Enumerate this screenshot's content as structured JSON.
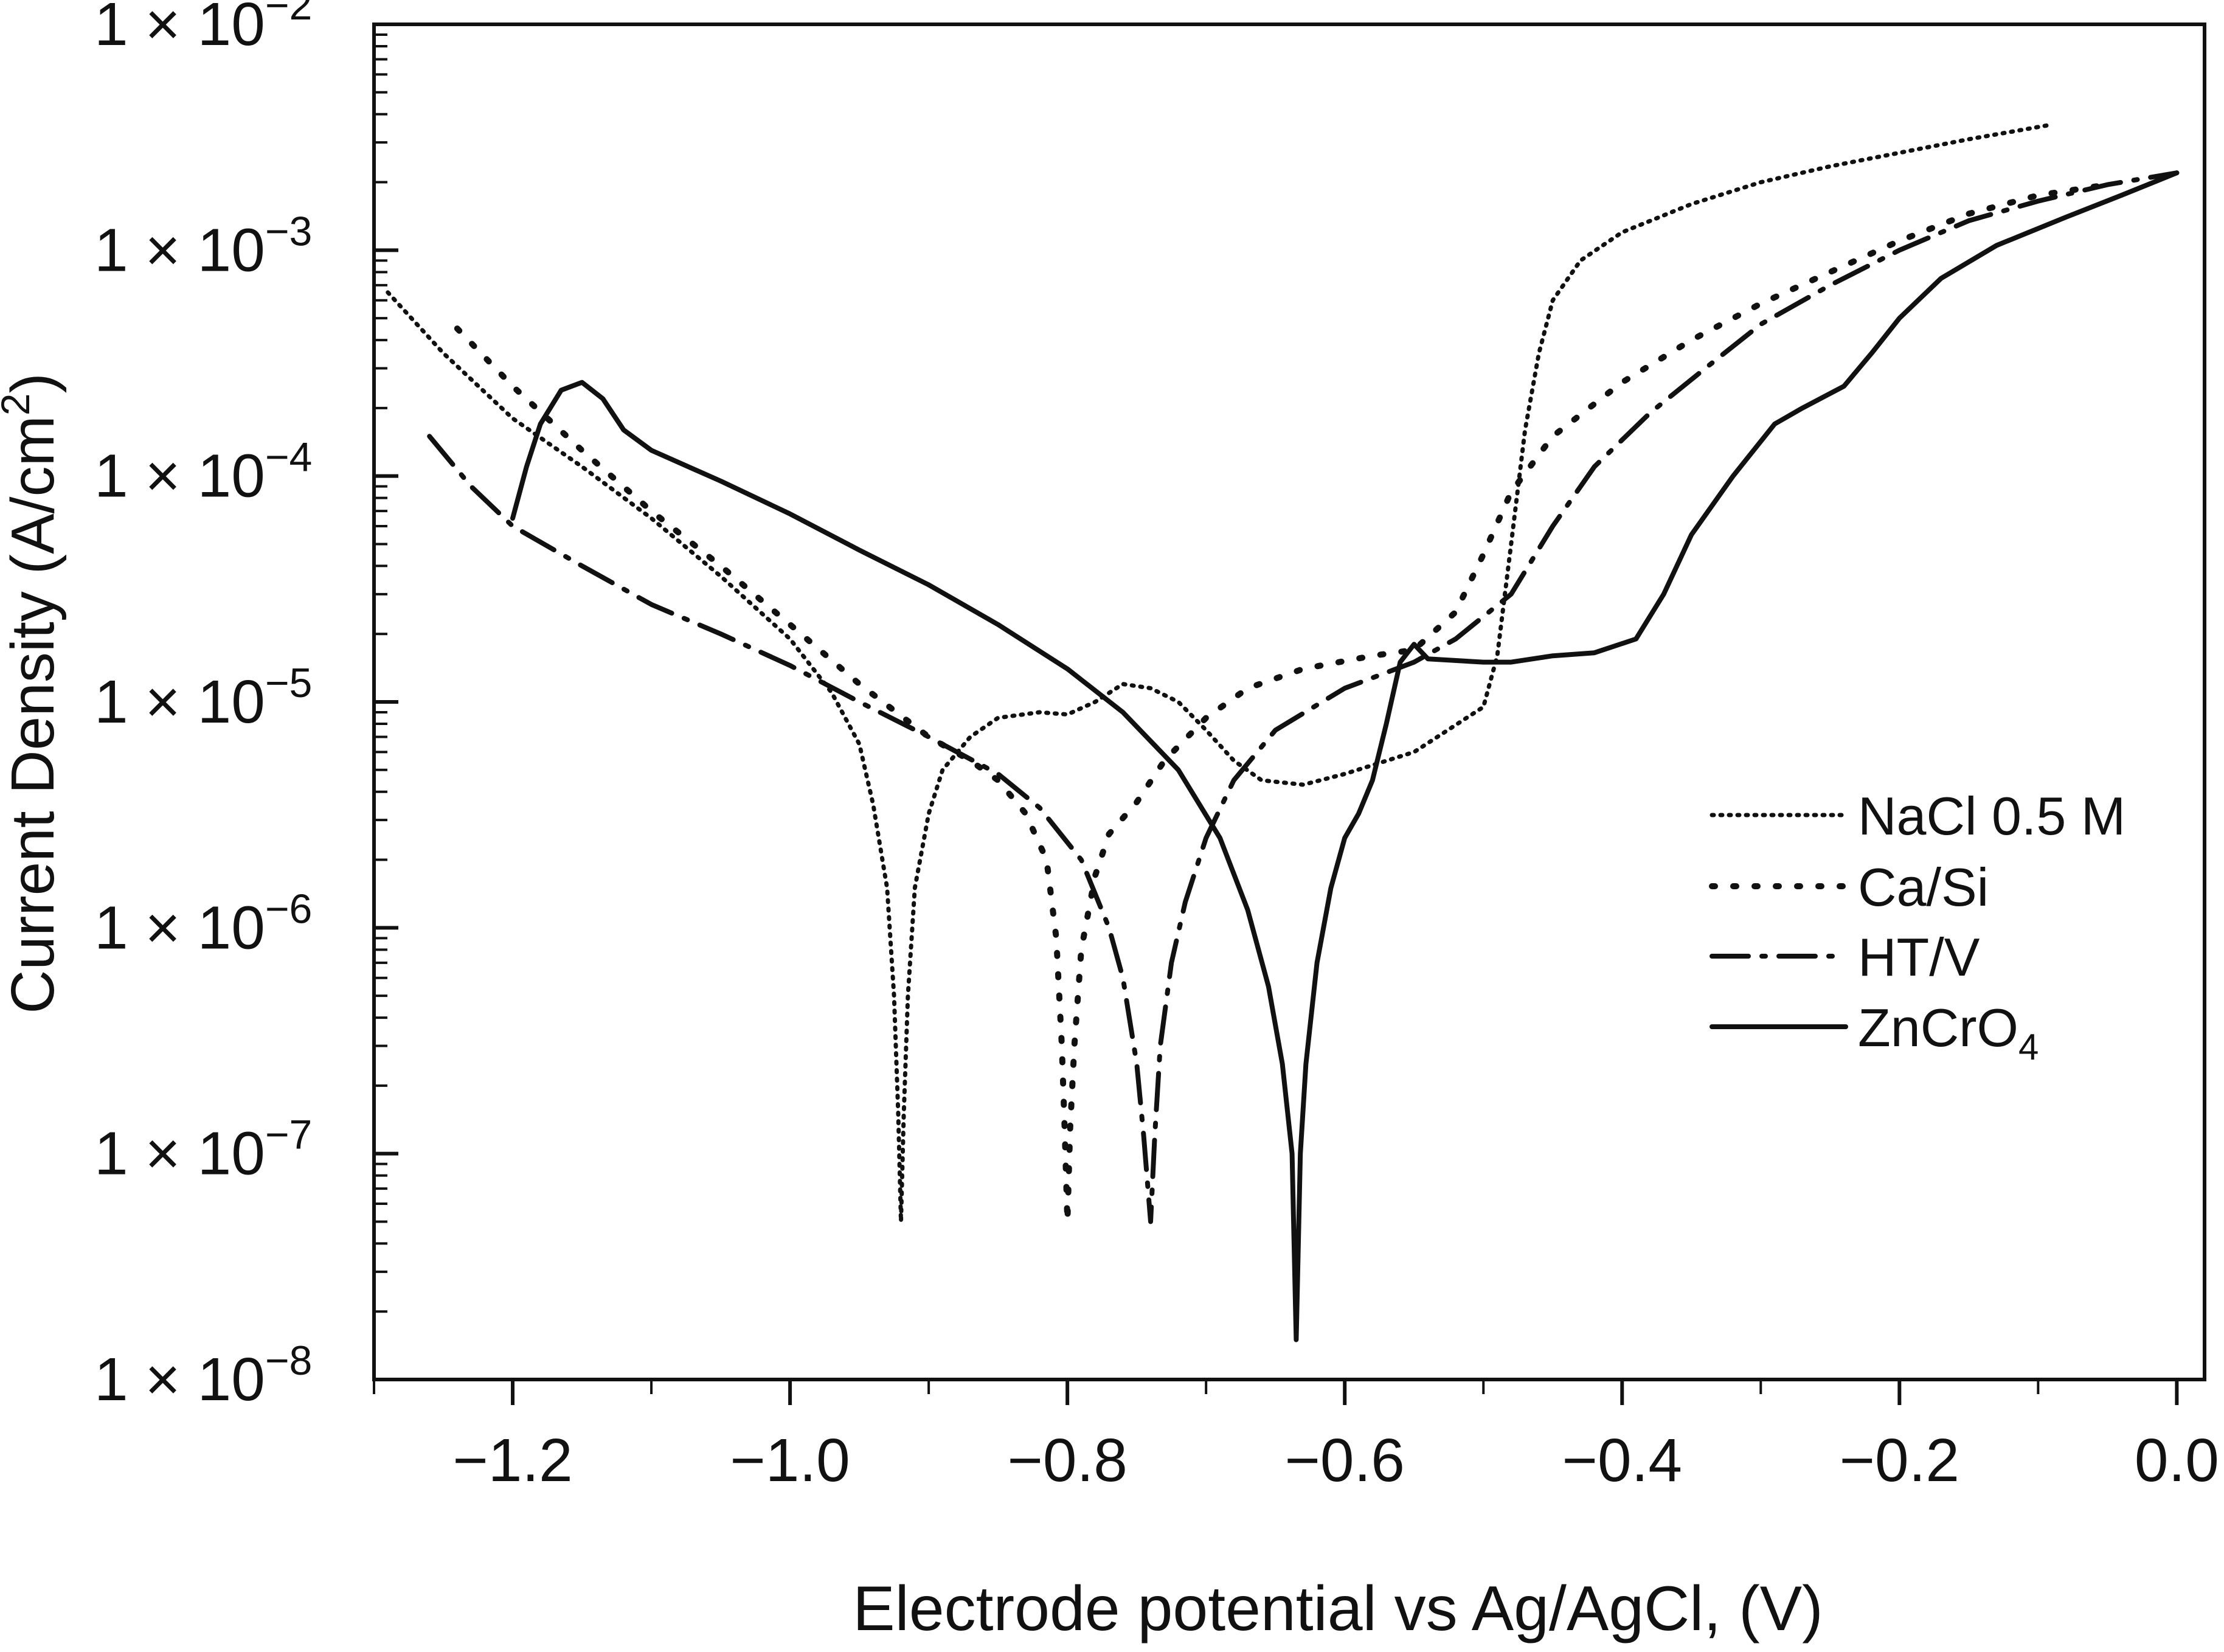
{
  "chart_data": {
    "type": "line",
    "title": "",
    "xlabel": "Electrode potential vs Ag/AgCl, (V)",
    "ylabel": "Current Density (A/cm²)",
    "ylabel_parts": {
      "main": "Current Density (A/cm",
      "sup": "2",
      "end": ")"
    },
    "xlim": [
      -1.3,
      0.02
    ],
    "ylim": [
      1e-08,
      0.01
    ],
    "yscale": "log",
    "x_ticks": [
      -1.2,
      -1.0,
      -0.8,
      -0.6,
      -0.4,
      -0.2,
      0.0
    ],
    "x_tick_labels": [
      "−1.2",
      "−1.0",
      "−0.8",
      "−0.6",
      "−0.4",
      "−0.2",
      "0.0"
    ],
    "y_ticks": [
      {
        "value": 0.01,
        "label": "1 × 10",
        "exp": "−2"
      },
      {
        "value": 0.001,
        "label": "1 × 10",
        "exp": "−3"
      },
      {
        "value": 0.0001,
        "label": "1 × 10",
        "exp": "−4"
      },
      {
        "value": 1e-05,
        "label": "1 × 10",
        "exp": "−5"
      },
      {
        "value": 1e-06,
        "label": "1 × 10",
        "exp": "−6"
      },
      {
        "value": 1e-07,
        "label": "1 × 10",
        "exp": "−7"
      },
      {
        "value": 1e-08,
        "label": "1 × 10",
        "exp": "−8"
      }
    ],
    "grid": false,
    "legend_position": "right",
    "series": [
      {
        "name": "NaCl 0.5 M",
        "label_main": "NaCl 0.5 M",
        "label_sub": "",
        "style": "dotted",
        "points": [
          [
            -1.29,
            0.00065
          ],
          [
            -1.25,
            0.00035
          ],
          [
            -1.2,
            0.00018
          ],
          [
            -1.15,
            0.00011
          ],
          [
            -1.1,
            6.5e-05
          ],
          [
            -1.05,
            3.6e-05
          ],
          [
            -1.0,
            1.9e-05
          ],
          [
            -0.97,
            1.1e-05
          ],
          [
            -0.95,
            6.5e-06
          ],
          [
            -0.94,
            3.5e-06
          ],
          [
            -0.93,
            1.5e-06
          ],
          [
            -0.925,
            5e-07
          ],
          [
            -0.922,
            1.5e-07
          ],
          [
            -0.92,
            5e-08
          ],
          [
            -0.918,
            1.5e-07
          ],
          [
            -0.915,
            5e-07
          ],
          [
            -0.91,
            1.5e-06
          ],
          [
            -0.9,
            3.2e-06
          ],
          [
            -0.89,
            5e-06
          ],
          [
            -0.87,
            7e-06
          ],
          [
            -0.85,
            8.5e-06
          ],
          [
            -0.82,
            9e-06
          ],
          [
            -0.8,
            8.8e-06
          ],
          [
            -0.78,
            1e-05
          ],
          [
            -0.76,
            1.2e-05
          ],
          [
            -0.74,
            1.15e-05
          ],
          [
            -0.72,
            1e-05
          ],
          [
            -0.7,
            7.5e-06
          ],
          [
            -0.68,
            5.5e-06
          ],
          [
            -0.66,
            4.5e-06
          ],
          [
            -0.63,
            4.3e-06
          ],
          [
            -0.6,
            4.8e-06
          ],
          [
            -0.55,
            6e-06
          ],
          [
            -0.5,
            9.5e-06
          ],
          [
            -0.49,
            1.6e-05
          ],
          [
            -0.48,
            5e-05
          ],
          [
            -0.47,
            0.00016
          ],
          [
            -0.46,
            0.00035
          ],
          [
            -0.45,
            0.0006
          ],
          [
            -0.43,
            0.0009
          ],
          [
            -0.4,
            0.0012
          ],
          [
            -0.35,
            0.0016
          ],
          [
            -0.3,
            0.002
          ],
          [
            -0.25,
            0.00235
          ],
          [
            -0.2,
            0.0027
          ],
          [
            -0.15,
            0.0031
          ],
          [
            -0.09,
            0.0036
          ]
        ]
      },
      {
        "name": "Ca/Si",
        "label_main": "Ca/Si",
        "label_sub": "",
        "style": "dashed-dots",
        "points": [
          [
            -1.24,
            0.00045
          ],
          [
            -1.2,
            0.00025
          ],
          [
            -1.15,
            0.00013
          ],
          [
            -1.1,
            7e-05
          ],
          [
            -1.05,
            4e-05
          ],
          [
            -1.0,
            2.2e-05
          ],
          [
            -0.95,
            1.2e-05
          ],
          [
            -0.9,
            7e-06
          ],
          [
            -0.87,
            5.5e-06
          ],
          [
            -0.85,
            4.5e-06
          ],
          [
            -0.83,
            3.2e-06
          ],
          [
            -0.815,
            2e-06
          ],
          [
            -0.808,
            9e-07
          ],
          [
            -0.804,
            3e-07
          ],
          [
            -0.802,
            1.3e-07
          ],
          [
            -0.8,
            5e-08
          ],
          [
            -0.798,
            1.3e-07
          ],
          [
            -0.795,
            3e-07
          ],
          [
            -0.79,
            8e-07
          ],
          [
            -0.78,
            1.7e-06
          ],
          [
            -0.77,
            2.6e-06
          ],
          [
            -0.75,
            3.6e-06
          ],
          [
            -0.73,
            5.5e-06
          ],
          [
            -0.7,
            8.5e-06
          ],
          [
            -0.67,
            1.15e-05
          ],
          [
            -0.63,
            1.4e-05
          ],
          [
            -0.58,
            1.6e-05
          ],
          [
            -0.55,
            1.7e-05
          ],
          [
            -0.52,
            2.5e-05
          ],
          [
            -0.5,
            4.5e-05
          ],
          [
            -0.48,
            8.5e-05
          ],
          [
            -0.45,
            0.00015
          ],
          [
            -0.4,
            0.00026
          ],
          [
            -0.35,
            0.0004
          ],
          [
            -0.3,
            0.00058
          ],
          [
            -0.25,
            0.0008
          ],
          [
            -0.2,
            0.0011
          ],
          [
            -0.15,
            0.00145
          ],
          [
            -0.1,
            0.00175
          ],
          [
            -0.05,
            0.00195
          ]
        ]
      },
      {
        "name": "HT/V",
        "label_main": "HT/V",
        "label_sub": "",
        "style": "dash-dot",
        "points": [
          [
            -1.26,
            0.00015
          ],
          [
            -1.23,
            9e-05
          ],
          [
            -1.2,
            6e-05
          ],
          [
            -1.15,
            4e-05
          ],
          [
            -1.1,
            2.7e-05
          ],
          [
            -1.05,
            2e-05
          ],
          [
            -1.0,
            1.45e-05
          ],
          [
            -0.95,
            1e-05
          ],
          [
            -0.9,
            7e-06
          ],
          [
            -0.85,
            4.8e-06
          ],
          [
            -0.82,
            3.4e-06
          ],
          [
            -0.79,
            2e-06
          ],
          [
            -0.77,
            1e-06
          ],
          [
            -0.76,
            6e-07
          ],
          [
            -0.75,
            2.5e-07
          ],
          [
            -0.745,
            1.2e-07
          ],
          [
            -0.74,
            5e-08
          ],
          [
            -0.737,
            1.2e-07
          ],
          [
            -0.733,
            3e-07
          ],
          [
            -0.725,
            7e-07
          ],
          [
            -0.715,
            1.3e-06
          ],
          [
            -0.7,
            2.5e-06
          ],
          [
            -0.68,
            4.5e-06
          ],
          [
            -0.65,
            7.5e-06
          ],
          [
            -0.6,
            1.15e-05
          ],
          [
            -0.55,
            1.5e-05
          ],
          [
            -0.52,
            1.9e-05
          ],
          [
            -0.48,
            3e-05
          ],
          [
            -0.45,
            6e-05
          ],
          [
            -0.42,
            0.00011
          ],
          [
            -0.38,
            0.00019
          ],
          [
            -0.34,
            0.0003
          ],
          [
            -0.3,
            0.00047
          ],
          [
            -0.25,
            0.0007
          ],
          [
            -0.2,
            0.001
          ],
          [
            -0.15,
            0.00135
          ],
          [
            -0.1,
            0.00165
          ],
          [
            -0.05,
            0.00195
          ],
          [
            0.0,
            0.0022
          ]
        ]
      },
      {
        "name": "ZnCrO4",
        "label_main": "ZnCrO",
        "label_sub": "4",
        "style": "solid",
        "points": [
          [
            -1.2,
            6.5e-05
          ],
          [
            -1.19,
            0.00011
          ],
          [
            -1.18,
            0.00017
          ],
          [
            -1.165,
            0.00024
          ],
          [
            -1.15,
            0.00026
          ],
          [
            -1.135,
            0.00022
          ],
          [
            -1.12,
            0.00016
          ],
          [
            -1.1,
            0.00013
          ],
          [
            -1.05,
            9.5e-05
          ],
          [
            -1.0,
            6.8e-05
          ],
          [
            -0.95,
            4.7e-05
          ],
          [
            -0.9,
            3.3e-05
          ],
          [
            -0.85,
            2.2e-05
          ],
          [
            -0.8,
            1.4e-05
          ],
          [
            -0.76,
            9e-06
          ],
          [
            -0.72,
            5e-06
          ],
          [
            -0.69,
            2.5e-06
          ],
          [
            -0.67,
            1.2e-06
          ],
          [
            -0.655,
            5.5e-07
          ],
          [
            -0.645,
            2.5e-07
          ],
          [
            -0.638,
            1e-07
          ],
          [
            -0.635,
            1.5e-08
          ],
          [
            -0.632,
            1e-07
          ],
          [
            -0.628,
            2.5e-07
          ],
          [
            -0.62,
            7e-07
          ],
          [
            -0.61,
            1.5e-06
          ],
          [
            -0.6,
            2.5e-06
          ],
          [
            -0.59,
            3.2e-06
          ],
          [
            -0.58,
            4.5e-06
          ],
          [
            -0.57,
            8e-06
          ],
          [
            -0.56,
            1.5e-05
          ],
          [
            -0.55,
            1.8e-05
          ],
          [
            -0.54,
            1.55e-05
          ],
          [
            -0.5,
            1.5e-05
          ],
          [
            -0.48,
            1.5e-05
          ],
          [
            -0.45,
            1.6e-05
          ],
          [
            -0.42,
            1.65e-05
          ],
          [
            -0.39,
            1.9e-05
          ],
          [
            -0.37,
            3e-05
          ],
          [
            -0.35,
            5.5e-05
          ],
          [
            -0.32,
            0.0001
          ],
          [
            -0.29,
            0.00017
          ],
          [
            -0.27,
            0.0002
          ],
          [
            -0.24,
            0.00025
          ],
          [
            -0.22,
            0.00035
          ],
          [
            -0.2,
            0.0005
          ],
          [
            -0.17,
            0.00075
          ],
          [
            -0.13,
            0.00105
          ],
          [
            -0.08,
            0.0014
          ],
          [
            -0.04,
            0.00175
          ],
          [
            0.0,
            0.0022
          ]
        ]
      }
    ]
  },
  "colors": {
    "line": "#111111",
    "background": "#ffffff"
  }
}
